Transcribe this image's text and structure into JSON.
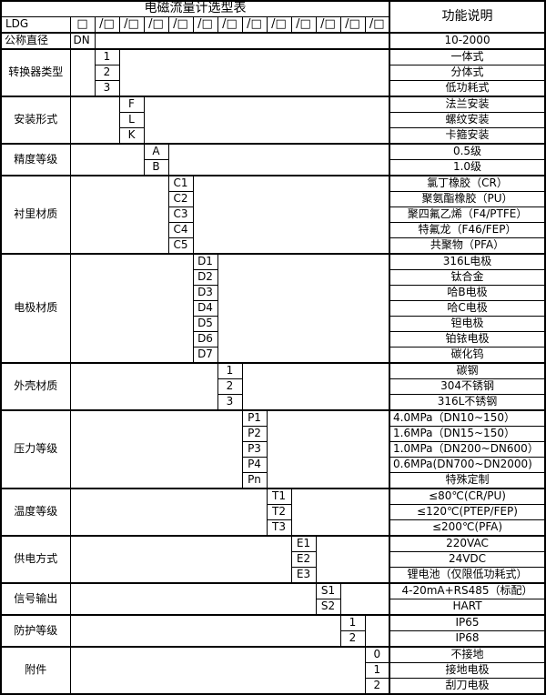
{
  "colors": {
    "border": "#000000",
    "background": "#ffffff",
    "text": "#000000"
  },
  "table": {
    "title": "电磁流量计选型表",
    "right_header": "功能说明",
    "model_prefix": "LDG",
    "code_box": "□",
    "code_slot": "/□",
    "num_code_slots": 12,
    "categories": [
      {
        "label": "公称直径",
        "label_align": "left",
        "code_col": 0,
        "options": [
          {
            "code": "DN",
            "code_align": "left",
            "desc": "10-2000"
          }
        ]
      },
      {
        "label": "转换器类型",
        "code_col": 1,
        "options": [
          {
            "code": "1",
            "desc": "一体式"
          },
          {
            "code": "2",
            "desc": "分体式"
          },
          {
            "code": "3",
            "desc": "低功耗式"
          }
        ]
      },
      {
        "label": "安装形式",
        "code_col": 2,
        "options": [
          {
            "code": "F",
            "desc": "法兰安装"
          },
          {
            "code": "L",
            "desc": "螺纹安装"
          },
          {
            "code": "K",
            "desc": "卡箍安装"
          }
        ]
      },
      {
        "label": "精度等级",
        "code_col": 3,
        "options": [
          {
            "code": "A",
            "desc": "0.5级"
          },
          {
            "code": "B",
            "desc": "1.0级"
          }
        ]
      },
      {
        "label": "衬里材质",
        "code_col": 4,
        "options": [
          {
            "code": "C1",
            "desc": "氯丁橡胶（CR）"
          },
          {
            "code": "C2",
            "desc": "聚氨酯橡胶（PU）"
          },
          {
            "code": "C3",
            "desc": "聚四氟乙烯（F4/PTFE）"
          },
          {
            "code": "C4",
            "desc": "特氟龙（F46/FEP）"
          },
          {
            "code": "C5",
            "desc": "共聚物（PFA）"
          }
        ]
      },
      {
        "label": "电极材质",
        "code_col": 5,
        "options": [
          {
            "code": "D1",
            "desc": "316L电极"
          },
          {
            "code": "D2",
            "desc": "钛合金"
          },
          {
            "code": "D3",
            "desc": "哈B电极"
          },
          {
            "code": "D4",
            "desc": "哈C电极"
          },
          {
            "code": "D5",
            "desc": "钽电极"
          },
          {
            "code": "D6",
            "desc": "铂铱电极"
          },
          {
            "code": "D7",
            "desc": "碳化钨"
          }
        ]
      },
      {
        "label": "外壳材质",
        "code_col": 6,
        "options": [
          {
            "code": "1",
            "desc": "碳钢"
          },
          {
            "code": "2",
            "desc": "304不锈钢"
          },
          {
            "code": "3",
            "desc": "316L不锈钢"
          }
        ]
      },
      {
        "label": "压力等级",
        "code_col": 7,
        "options": [
          {
            "code": "P1",
            "desc": "4.0MPa（DN10~150）",
            "desc_align": "left"
          },
          {
            "code": "P2",
            "desc": "1.6MPa（DN15~150）",
            "desc_align": "left"
          },
          {
            "code": "P3",
            "desc": "1.0MPa（DN200~DN600）",
            "desc_align": "left"
          },
          {
            "code": "P4",
            "desc": "0.6MPa(DN700~DN2000)",
            "desc_align": "left"
          },
          {
            "code": "Pn",
            "desc": "特殊定制"
          }
        ]
      },
      {
        "label": "温度等级",
        "code_col": 8,
        "options": [
          {
            "code": "T1",
            "desc": "≤80℃(CR/PU)"
          },
          {
            "code": "T2",
            "desc": "≤120℃(PTEP/FEP)"
          },
          {
            "code": "T3",
            "desc": "≤200℃(PFA)"
          }
        ]
      },
      {
        "label": "供电方式",
        "code_col": 9,
        "options": [
          {
            "code": "E1",
            "desc": "220VAC"
          },
          {
            "code": "E2",
            "desc": "24VDC"
          },
          {
            "code": "E3",
            "desc": "锂电池（仅限低功耗式）"
          }
        ]
      },
      {
        "label": "信号输出",
        "code_col": 10,
        "options": [
          {
            "code": "S1",
            "desc": "4-20mA+RS485（标配）"
          },
          {
            "code": "S2",
            "desc": "HART"
          }
        ]
      },
      {
        "label": "防护等级",
        "code_col": 11,
        "options": [
          {
            "code": "1",
            "desc": "IP65"
          },
          {
            "code": "2",
            "desc": "IP68"
          }
        ]
      },
      {
        "label": "附件",
        "code_col": 12,
        "options": [
          {
            "code": "0",
            "desc": "不接地"
          },
          {
            "code": "1",
            "desc": "接地电极"
          },
          {
            "code": "2",
            "desc": "刮刀电极"
          }
        ]
      }
    ]
  }
}
